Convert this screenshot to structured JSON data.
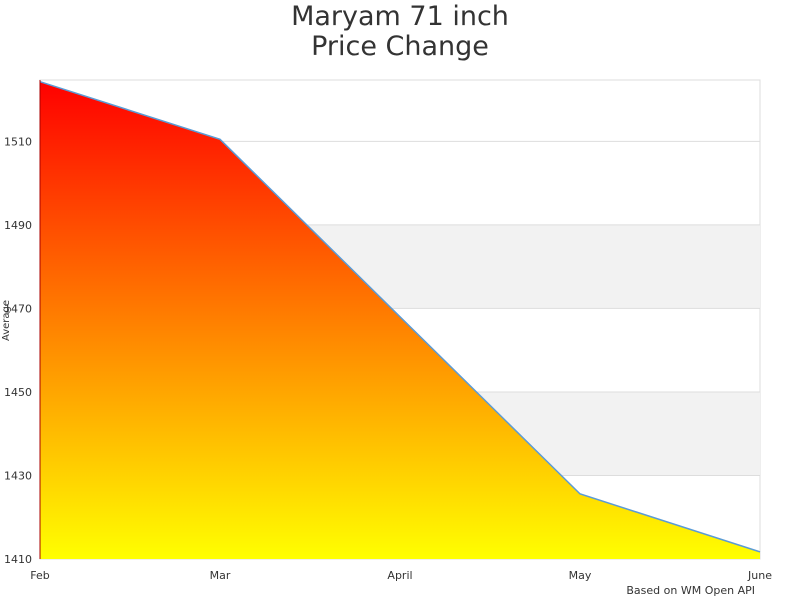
{
  "chart_data": {
    "type": "area",
    "title_line1": "Maryam 71 inch",
    "title_line2": "Price Change",
    "ylabel": "Average",
    "xlabel": "",
    "categories": [
      "Feb",
      "Mar",
      "April",
      "May",
      "June"
    ],
    "values": [
      1524.3,
      1510.5,
      1468,
      1425.6,
      1411.7
    ],
    "ylim": [
      1410,
      1524.7
    ],
    "yticks": [
      1410,
      1430,
      1450,
      1470,
      1490,
      1510
    ],
    "grid": true,
    "legend": "none",
    "fill_gradient": [
      "#ff0000",
      "#ffff00"
    ],
    "line_color": "#5b9bd5",
    "band_color": "#f2f2f2"
  },
  "credit": "Based on WM Open API"
}
